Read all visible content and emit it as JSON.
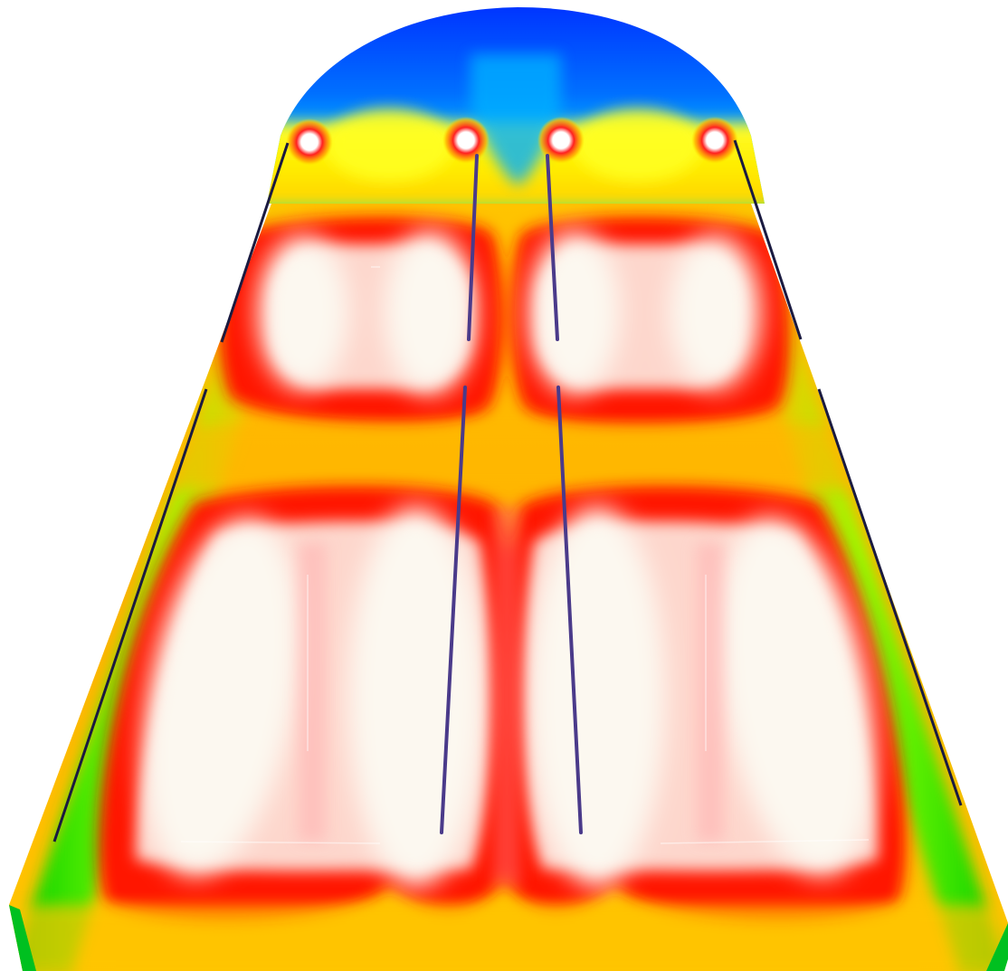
{
  "figure": {
    "kind": "field-contour-rendering",
    "colormap": [
      "#0033ff",
      "#00b4ff",
      "#00ffcc",
      "#22ff00",
      "#ffff00",
      "#ffb400",
      "#ff0000",
      "#ffffff"
    ],
    "colors": {
      "background": "#ffffff",
      "hot_core": "#fdf8f0",
      "hot_ring": "#ff1a00",
      "warm_field": "#ffb000",
      "mid_field": "#ffe600",
      "cool_edge": "#33e000",
      "cold_cap": "#0040ff",
      "rail_line": "#1a1a40",
      "bar_line": "#4a3a8a"
    },
    "hot_spots_top_row": 4,
    "hot_zones_middle_row": 4,
    "hot_zones_bottom_row": 4,
    "center_bars": 4,
    "side_rails": 2
  }
}
